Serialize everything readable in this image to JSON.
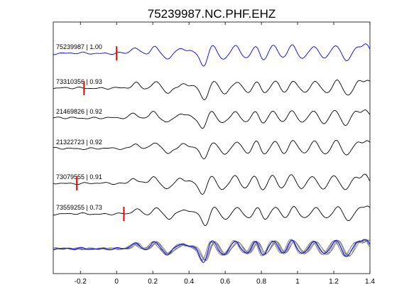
{
  "figure": {
    "title": "75239987.NC.PHF.EHZ"
  },
  "chart_data": {
    "type": "line",
    "title": "75239987.NC.PHF.EHZ",
    "xlabel": "",
    "ylabel": "",
    "xlim": [
      -0.35,
      1.4
    ],
    "xticks": [
      -0.2,
      0,
      0.2,
      0.4,
      0.6,
      0.8,
      1,
      1.2,
      1.4
    ],
    "xtick_labels": [
      "-0.2",
      "0",
      "0.2",
      "0.4",
      "0.6",
      "0.8",
      "1",
      "1.2",
      "1.4"
    ],
    "grid": false,
    "colors": {
      "master": "#0000ff",
      "trace": "#000000",
      "overlay": "#808080",
      "pick": "#ff0000",
      "axes": "#000000"
    },
    "series": [
      {
        "name": "75239987 | 1.00",
        "event_id": "75239987",
        "correlation": 1.0,
        "pick_time": 0.0,
        "color": "#0000ff"
      },
      {
        "name": "73310356 | 0.93",
        "event_id": "73310356",
        "correlation": 0.93,
        "pick_time": -0.18,
        "color": "#000000"
      },
      {
        "name": "21469826 | 0.92",
        "event_id": "21469826",
        "correlation": 0.92,
        "pick_time": null,
        "color": "#000000"
      },
      {
        "name": "21322723 | 0.92",
        "event_id": "21322723",
        "correlation": 0.92,
        "pick_time": null,
        "color": "#000000"
      },
      {
        "name": "73079555 | 0.91",
        "event_id": "73079555",
        "correlation": 0.91,
        "pick_time": -0.22,
        "color": "#000000"
      },
      {
        "name": "73559255 | 0.73",
        "event_id": "73559255",
        "correlation": 0.73,
        "pick_time": 0.04,
        "color": "#000000"
      }
    ],
    "stack": {
      "name": "",
      "description": "all traces overlaid"
    },
    "waveform_model": {
      "pre_noise_amp": 0.05,
      "onset": 0.0,
      "peaks": [
        {
          "t": 0.1,
          "a": 0.45
        },
        {
          "t": 0.21,
          "a": 0.55
        },
        {
          "t": 0.28,
          "a": -0.45
        },
        {
          "t": 0.36,
          "a": 0.4
        },
        {
          "t": 0.41,
          "a": 0.2
        },
        {
          "t": 0.48,
          "a": -1.0
        },
        {
          "t": 0.53,
          "a": 0.6
        },
        {
          "t": 0.59,
          "a": -0.5
        },
        {
          "t": 0.66,
          "a": 0.6
        },
        {
          "t": 0.72,
          "a": -0.4
        },
        {
          "t": 0.77,
          "a": 0.65
        },
        {
          "t": 0.81,
          "a": -0.55
        },
        {
          "t": 0.87,
          "a": 0.65
        },
        {
          "t": 0.92,
          "a": -0.4
        },
        {
          "t": 0.97,
          "a": 0.7
        },
        {
          "t": 1.03,
          "a": -0.4
        },
        {
          "t": 1.09,
          "a": 0.6
        },
        {
          "t": 1.15,
          "a": -0.45
        },
        {
          "t": 1.21,
          "a": 0.7
        },
        {
          "t": 1.27,
          "a": -0.6
        },
        {
          "t": 1.33,
          "a": 0.55
        },
        {
          "t": 1.38,
          "a": 0.7
        }
      ]
    }
  }
}
